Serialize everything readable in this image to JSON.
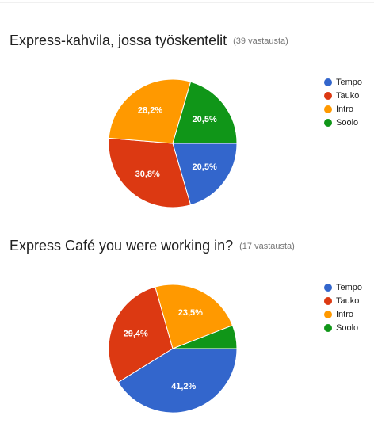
{
  "chart_data": [
    {
      "type": "pie",
      "title": "Express-kahvila, jossa työskentelit",
      "subtitle": "(39 vastausta)",
      "categories": [
        "Tempo",
        "Tauko",
        "Intro",
        "Soolo"
      ],
      "values": [
        20.5,
        30.8,
        28.2,
        20.5
      ],
      "value_labels": [
        "20,5%",
        "30,8%",
        "28,2%",
        "20,5%"
      ],
      "colors": [
        "#3366cc",
        "#dc3912",
        "#ff9900",
        "#109618"
      ],
      "legend": "right"
    },
    {
      "type": "pie",
      "title": "Express Café you were working in?",
      "subtitle": "(17 vastausta)",
      "categories": [
        "Tempo",
        "Tauko",
        "Intro",
        "Soolo"
      ],
      "values": [
        41.2,
        29.4,
        23.5,
        5.9
      ],
      "value_labels": [
        "41,2%",
        "29,4%",
        "23,5%",
        null
      ],
      "colors": [
        "#3366cc",
        "#dc3912",
        "#ff9900",
        "#109618"
      ],
      "legend": "right"
    }
  ]
}
